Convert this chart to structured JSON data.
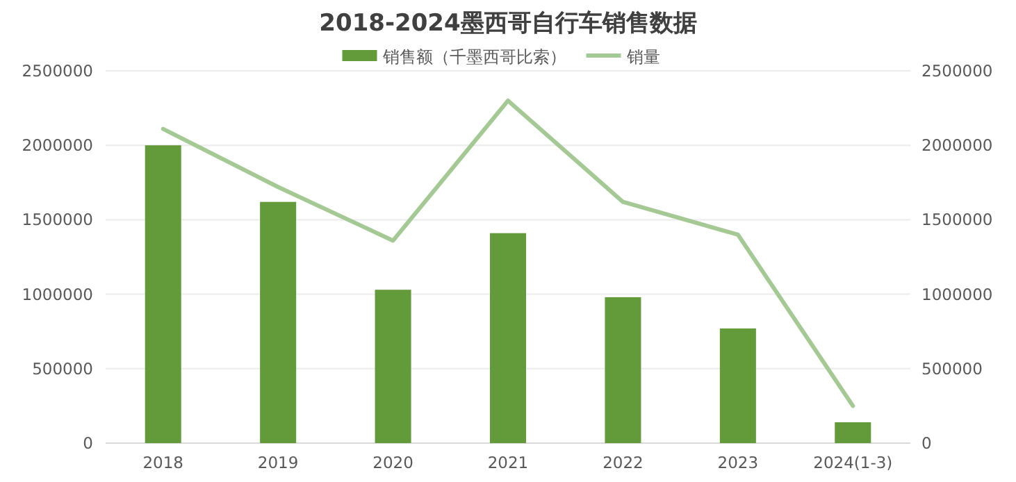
{
  "chart_data": {
    "type": "bar",
    "title": "2018-2024墨西哥自行车销售数据",
    "categories": [
      "2018",
      "2019",
      "2020",
      "2021",
      "2022",
      "2023",
      "2024(1-3)"
    ],
    "series": [
      {
        "name": "销售额（千墨西哥比索）",
        "color": "#639a3a",
        "values": [
          2000000,
          1620000,
          1030000,
          1410000,
          980000,
          770000,
          140000
        ]
      },
      {
        "name": "销量",
        "type": "line",
        "axis": "y2",
        "color": "#a5c994",
        "values": [
          2110000,
          1720000,
          1360000,
          2300000,
          1620000,
          1400000,
          250000
        ]
      }
    ],
    "ylim": [
      0,
      2500000
    ],
    "yticks": [
      0,
      500000,
      1000000,
      1500000,
      2000000,
      2500000
    ],
    "y2lim": [
      0,
      2500000
    ],
    "y2ticks": [
      0,
      500000,
      1000000,
      1500000,
      2000000,
      2500000
    ],
    "grid": "y",
    "legend": "top",
    "marker": "none",
    "line_style": "solid"
  }
}
